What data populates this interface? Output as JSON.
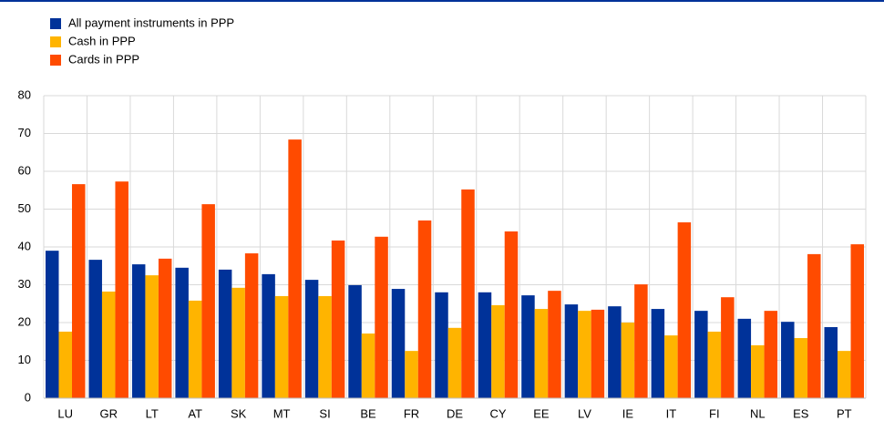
{
  "chart_data": {
    "type": "bar",
    "categories": [
      "LU",
      "GR",
      "LT",
      "AT",
      "SK",
      "MT",
      "SI",
      "BE",
      "FR",
      "DE",
      "CY",
      "EE",
      "LV",
      "IE",
      "IT",
      "FI",
      "NL",
      "ES",
      "PT"
    ],
    "series": [
      {
        "name": "All payment instruments in PPP",
        "color": "#003299",
        "values": [
          39.0,
          36.6,
          35.4,
          34.5,
          34.0,
          32.8,
          31.3,
          29.9,
          28.9,
          28.0,
          28.0,
          27.2,
          24.8,
          24.3,
          23.6,
          23.1,
          21.0,
          20.2,
          18.8
        ]
      },
      {
        "name": "Cash in PPP",
        "color": "#ffb400",
        "values": [
          17.6,
          28.2,
          32.5,
          25.8,
          29.2,
          27.0,
          27.0,
          17.1,
          12.5,
          18.6,
          24.6,
          23.6,
          23.1,
          20.0,
          16.6,
          17.6,
          14.0,
          15.9,
          12.5
        ]
      },
      {
        "name": "Cards in PPP",
        "color": "#ff4b00",
        "values": [
          56.6,
          57.3,
          36.9,
          51.3,
          38.3,
          68.4,
          41.7,
          42.7,
          47.0,
          55.2,
          44.1,
          28.4,
          23.4,
          30.1,
          46.5,
          26.7,
          23.1,
          38.1,
          40.7
        ]
      }
    ],
    "ylim": [
      0,
      80
    ],
    "yticks": [
      0,
      10,
      20,
      30,
      40,
      50,
      60,
      70,
      80
    ],
    "grid": true,
    "legend": "top-left"
  }
}
